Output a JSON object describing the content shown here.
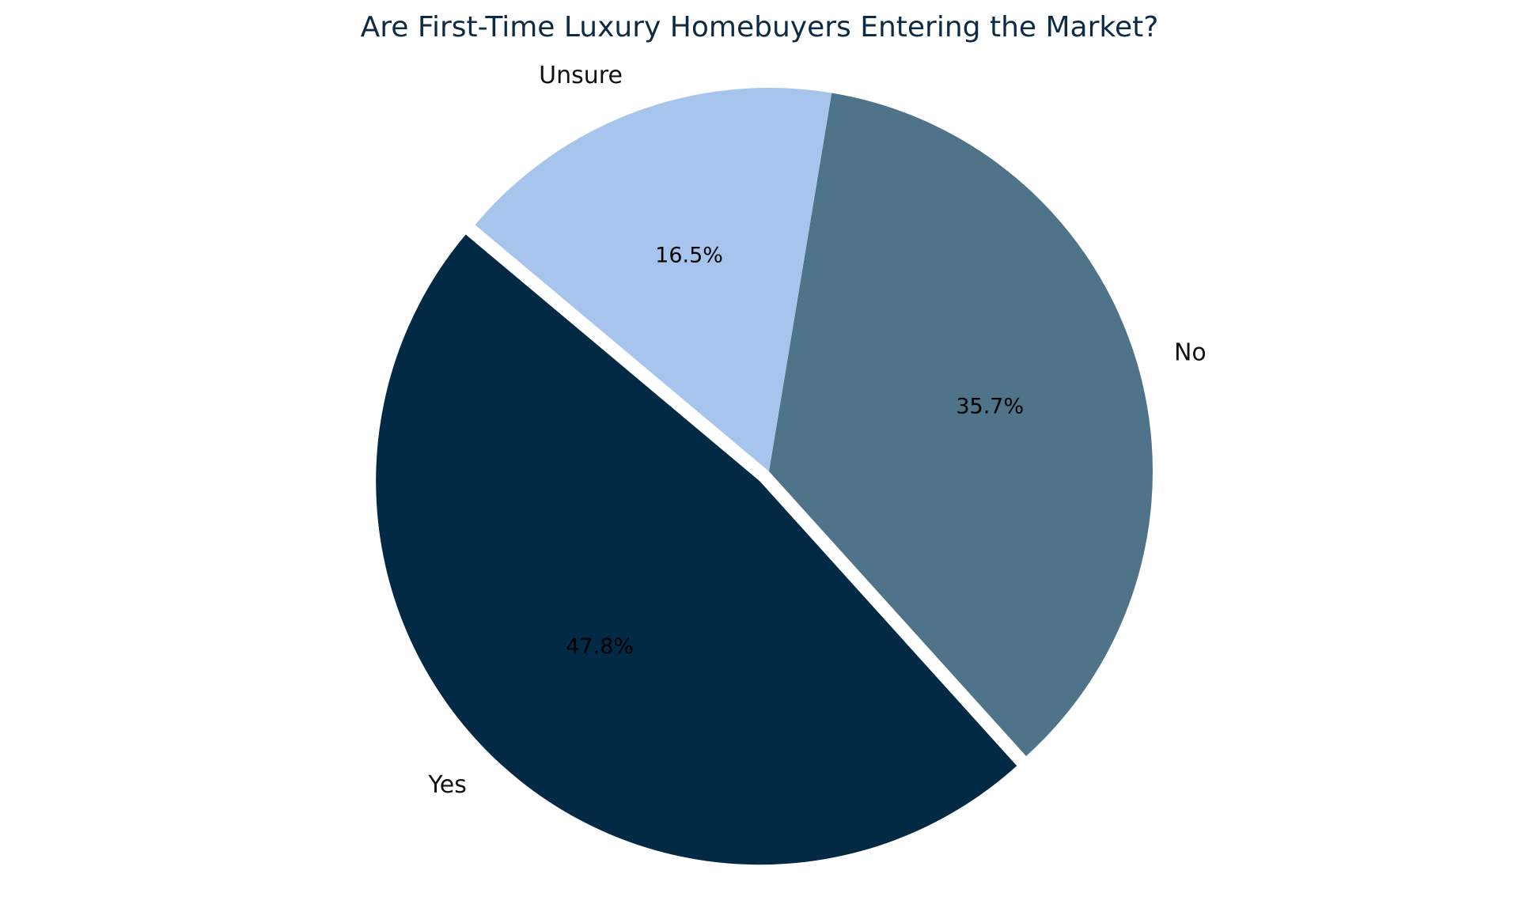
{
  "chart_data": {
    "type": "pie",
    "title": "Are First-Time Luxury Homebuyers Entering the Market?",
    "slices": [
      {
        "label": "Yes",
        "value": 47.8,
        "pct_text": "47.8%",
        "color": "#022a44",
        "exploded": true
      },
      {
        "label": "No",
        "value": 35.7,
        "pct_text": "35.7%",
        "color": "#4f7489",
        "exploded": false
      },
      {
        "label": "Unsure",
        "value": 16.5,
        "pct_text": "16.5%",
        "color": "#a7c5ec",
        "exploded": false
      }
    ],
    "start_angle_deg": 140,
    "direction": "counterclockwise",
    "legend": "none"
  }
}
